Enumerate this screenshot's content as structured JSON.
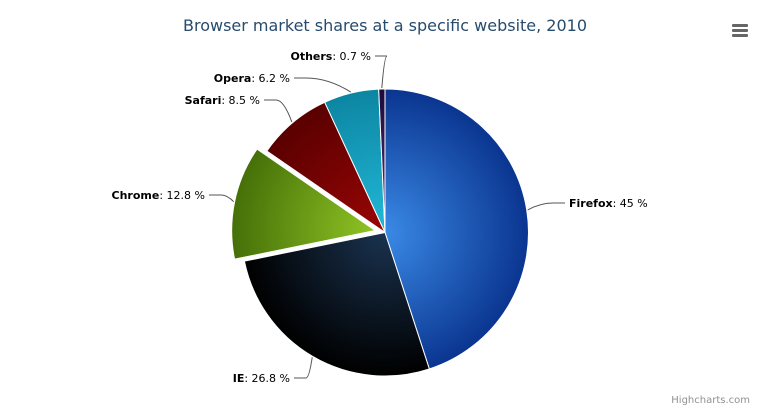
{
  "chart_data": {
    "type": "pie",
    "title": "Browser market shares at a specific website, 2010",
    "unit": "%",
    "slices": [
      {
        "name": "Firefox",
        "value": 45,
        "color": "#2f7ed8",
        "sliced": false
      },
      {
        "name": "IE",
        "value": 26.8,
        "color": "#0d233a",
        "sliced": false
      },
      {
        "name": "Chrome",
        "value": 12.8,
        "color": "#8bbc21",
        "sliced": true
      },
      {
        "name": "Safari",
        "value": 8.5,
        "color": "#910000",
        "sliced": false
      },
      {
        "name": "Opera",
        "value": 6.2,
        "color": "#1aadce",
        "sliced": false
      },
      {
        "name": "Others",
        "value": 0.7,
        "color": "#492970",
        "sliced": false
      }
    ]
  },
  "credits": "Highcharts.com",
  "menu_icon": "hamburger-menu-icon"
}
